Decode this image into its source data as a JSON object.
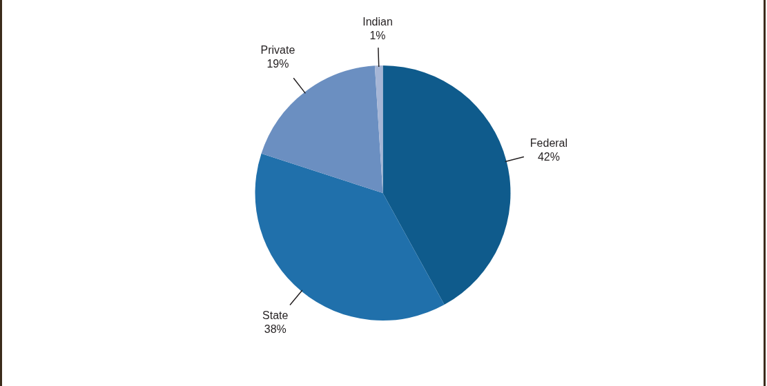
{
  "chart_data": {
    "type": "pie",
    "categories": [
      "Federal",
      "State",
      "Private",
      "Indian"
    ],
    "values": [
      42,
      38,
      19,
      1
    ],
    "value_labels": [
      "42%",
      "38%",
      "19%",
      "1%"
    ],
    "colors": [
      "#0f5b8c",
      "#2070ab",
      "#6b8fc1",
      "#a6b6d6"
    ]
  }
}
